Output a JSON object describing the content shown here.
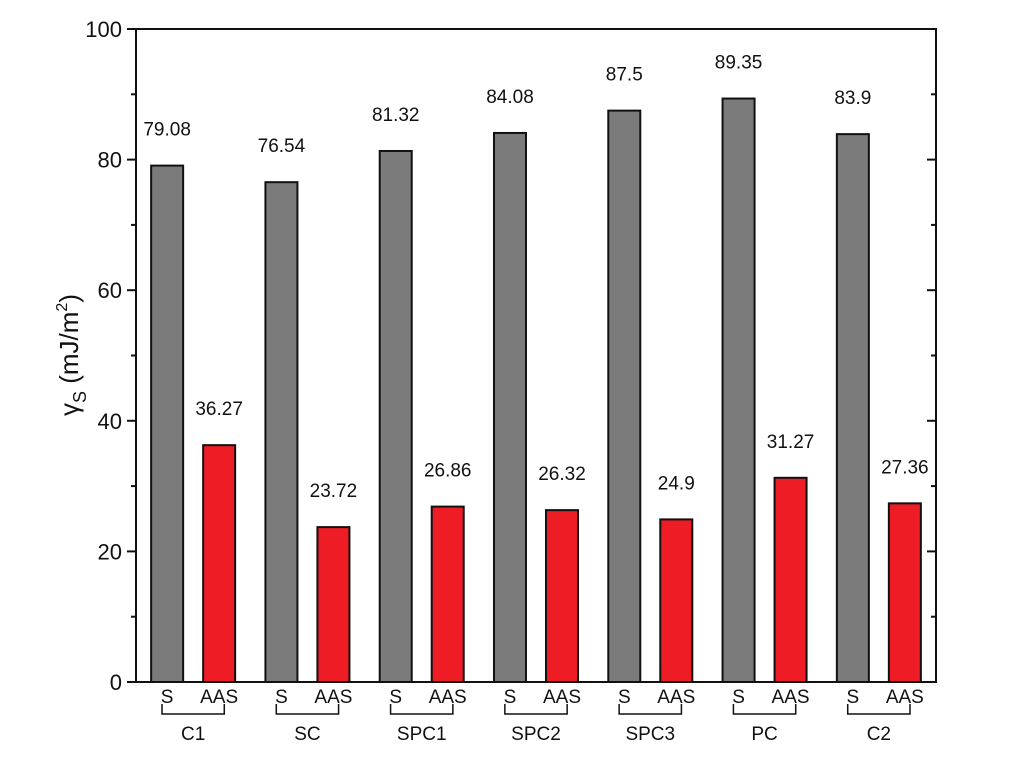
{
  "chart_data": {
    "type": "bar",
    "categories": [
      "C1",
      "SC",
      "SPC1",
      "SPC2",
      "SPC3",
      "PC",
      "C2"
    ],
    "sub_labels": [
      "S",
      "AAS"
    ],
    "series": [
      {
        "values": [
          79.08,
          76.54,
          81.32,
          84.08,
          87.5,
          89.35,
          83.9
        ],
        "color": "#7b7b7b"
      },
      {
        "values": [
          36.27,
          23.72,
          26.86,
          26.32,
          24.9,
          31.27,
          27.36
        ],
        "color": "#ee1c25"
      }
    ],
    "data_labels": [
      [
        "79.08",
        "76.54",
        "81.32",
        "84.08",
        "87.5",
        "89.35",
        "83.9"
      ],
      [
        "36.27",
        "23.72",
        "26.86",
        "26.32",
        "24.9",
        "31.27",
        "27.36"
      ]
    ],
    "ylabel_symbol": "γ",
    "ylabel_subscript": "S",
    "ylabel_unit": " (mJ/m",
    "ylabel_sup": "2",
    "ylabel_close": ")",
    "ylim": [
      0,
      100
    ],
    "yticks": [
      0,
      20,
      40,
      60,
      80,
      100
    ],
    "yticklabels": [
      "0",
      "20",
      "40",
      "60",
      "80",
      "100"
    ],
    "grid": false
  }
}
